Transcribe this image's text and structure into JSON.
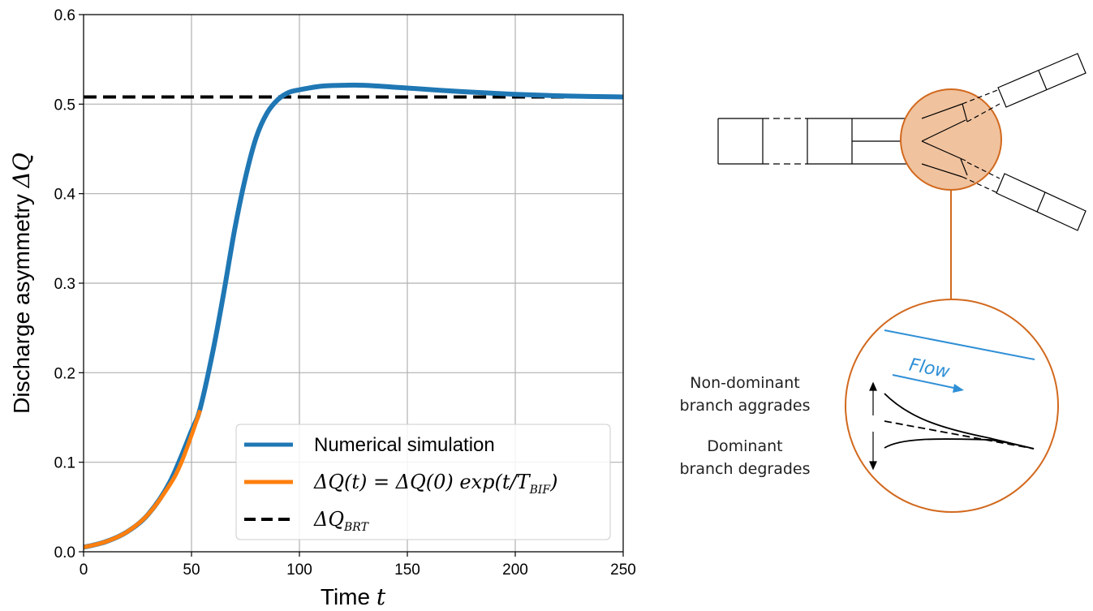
{
  "chart_data": {
    "type": "line",
    "xlabel": "Time",
    "xlabel_symbol": "t",
    "ylabel": "Discharge asymmetry",
    "ylabel_symbol": "ΔQ",
    "xlim": [
      0,
      250
    ],
    "ylim": [
      0,
      0.6
    ],
    "xticks": [
      "0",
      "50",
      "100",
      "150",
      "200",
      "250"
    ],
    "yticks": [
      "0.0",
      "0.1",
      "0.2",
      "0.3",
      "0.4",
      "0.5",
      "0.6"
    ],
    "grid": true,
    "legend_position": "lower-right",
    "series": [
      {
        "name": "Numerical simulation",
        "color": "#1f77b4",
        "x": [
          0,
          10,
          20,
          30,
          40,
          50,
          54,
          60,
          65,
          70,
          75,
          80,
          85,
          90,
          95,
          100,
          110,
          120,
          130,
          150,
          175,
          200,
          225,
          250
        ],
        "y": [
          0.005,
          0.011,
          0.022,
          0.042,
          0.078,
          0.135,
          0.16,
          0.225,
          0.29,
          0.36,
          0.418,
          0.463,
          0.49,
          0.505,
          0.513,
          0.516,
          0.52,
          0.521,
          0.521,
          0.518,
          0.514,
          0.511,
          0.509,
          0.508
        ]
      },
      {
        "name": "ΔQ(t) = ΔQ(0) exp(t/T_BIF)",
        "color": "#ff7f0e",
        "x": [
          0,
          10,
          20,
          30,
          40,
          45,
          50,
          54
        ],
        "y": [
          0.005,
          0.011,
          0.022,
          0.042,
          0.075,
          0.098,
          0.13,
          0.158
        ]
      },
      {
        "name": "ΔQ_BRT",
        "color": "#000000",
        "style": "dashed",
        "x": [
          0,
          250
        ],
        "y": [
          0.508,
          0.508
        ]
      }
    ]
  },
  "legend": {
    "sim": "Numerical simulation",
    "fit": "ΔQ(t) = ΔQ(0) exp(t/T",
    "fit_sub": "BIF",
    "fit_end": ")",
    "brt": "ΔQ",
    "brt_sub": "BRT"
  },
  "diagram": {
    "flow_label": "Flow",
    "nondominant_line1": "Non-dominant",
    "nondominant_line2": "branch aggrades",
    "dominant_line1": "Dominant",
    "dominant_line2": "branch degrades",
    "accent_color": "#d2691e",
    "flow_color": "#2f8fd6"
  }
}
